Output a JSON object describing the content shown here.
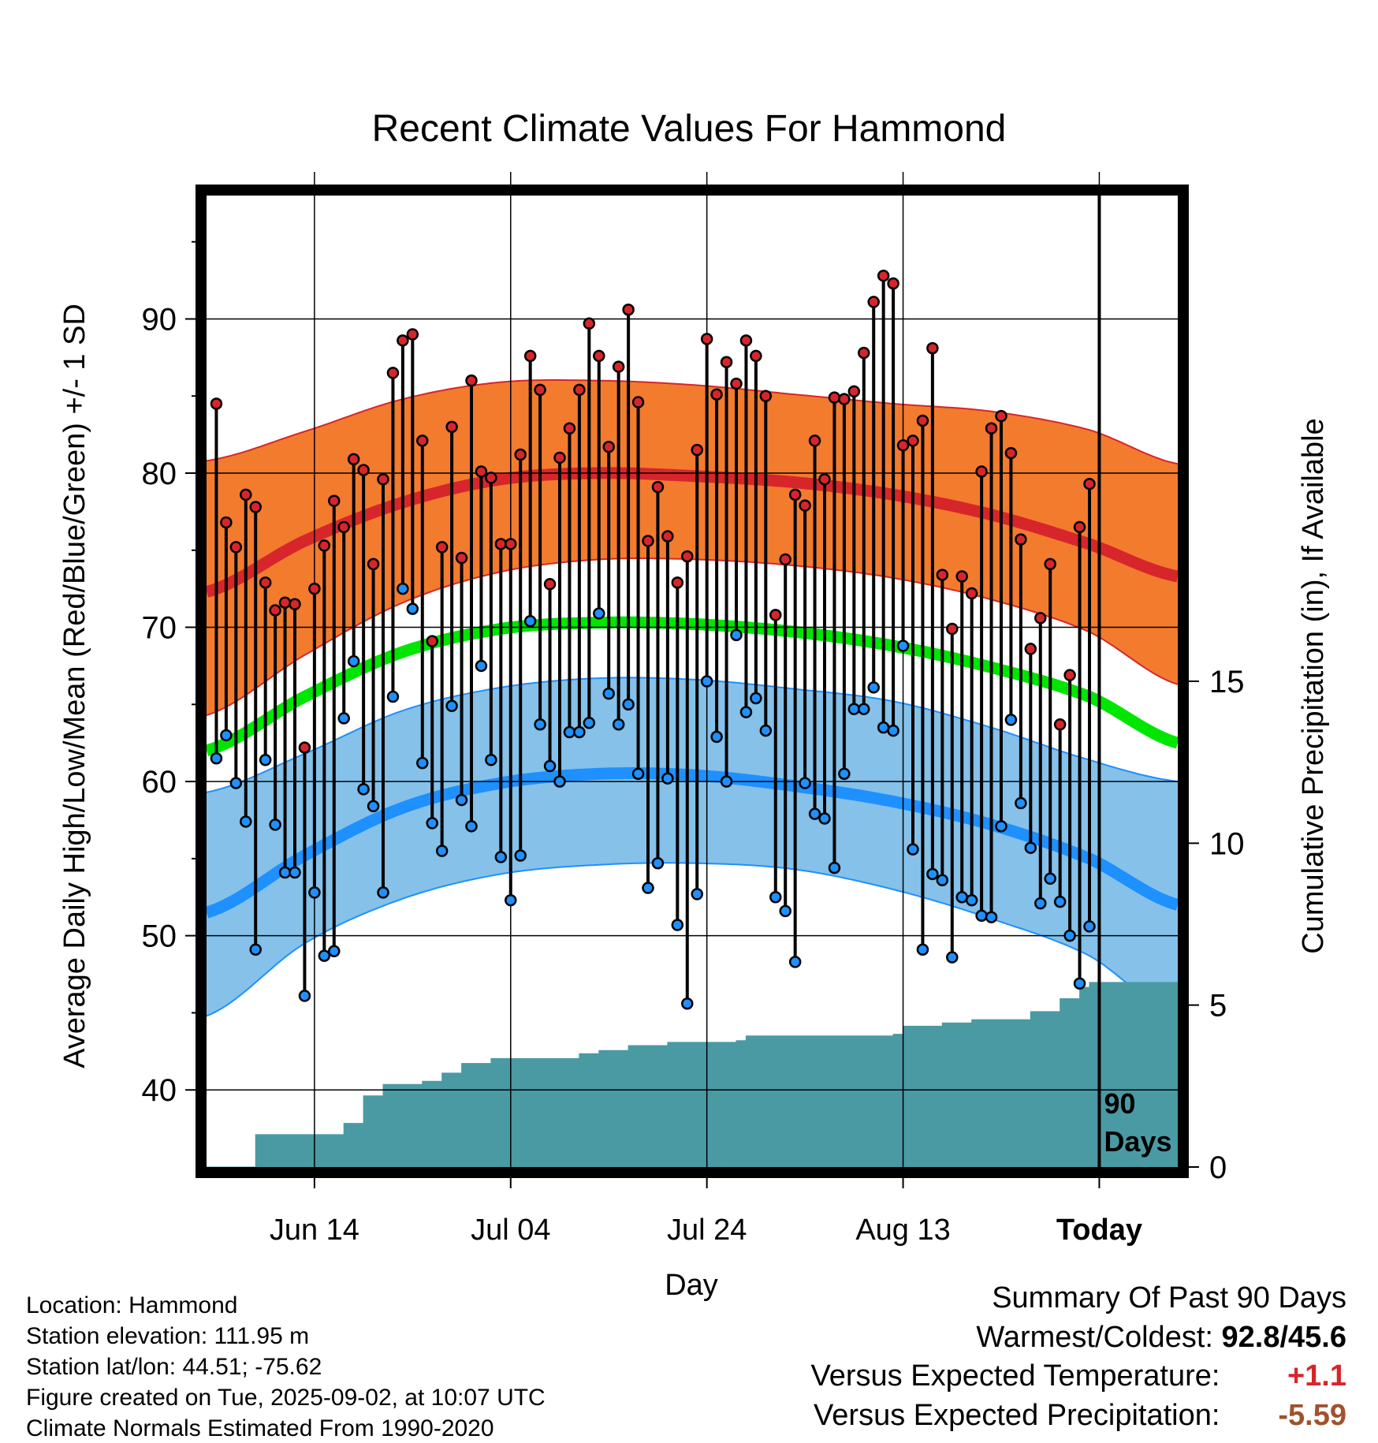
{
  "title": "Recent Climate Values For Hammond",
  "footer": {
    "location": "Location: Hammond",
    "elevation": "Station elevation: 111.95 m",
    "latlon": "Station lat/lon: 44.51; -75.62",
    "created": "Figure created on Tue, 2025-09-02, at 10:07 UTC",
    "normals": "Climate Normals Estimated From 1990-2020"
  },
  "summary": {
    "heading": "Summary Of Past 90 Days",
    "warm_cold_label": "Warmest/Coldest:",
    "warm_cold_value": "92.8/45.6",
    "temp_label": "Versus Expected Temperature:",
    "temp_value": "+1.1",
    "temp_color": "#d7262b",
    "precip_label": "Versus Expected Precipitation:",
    "precip_value": "-5.59",
    "precip_color": "#a0522d"
  },
  "chart_data": {
    "type": "line",
    "title": "Recent Climate Values For Hammond",
    "xlabel": "Day",
    "ylabel": "Average Daily High/Low/Mean (Red/Blue/Green) +/- 1 SD",
    "y2label": "Cumulative Precipitation (in), If Available",
    "x_range_days": [
      -90,
      9
    ],
    "x_ticks": [
      {
        "day": -79,
        "label": "Jun 14"
      },
      {
        "day": -59,
        "label": "Jul 04"
      },
      {
        "day": -39,
        "label": "Jul 24"
      },
      {
        "day": -19,
        "label": "Aug 13"
      },
      {
        "day": 1,
        "label": "Today"
      }
    ],
    "ylim": [
      35,
      98
    ],
    "y_ticks": [
      40,
      50,
      60,
      70,
      80,
      90
    ],
    "y2lim": [
      0,
      30
    ],
    "y2_ticks": [
      0,
      5,
      10,
      15
    ],
    "today_marker": {
      "day": 1,
      "label": [
        "90",
        "Days"
      ]
    },
    "colors": {
      "high_band": "#f37b2e",
      "high_mean": "#d7262b",
      "low_band": "#85c1e9",
      "low_mean": "#1e90ff",
      "avg_mean": "#00e600",
      "precip": "#4a9aa4",
      "high_dot": "#d7262b",
      "low_dot": "#1e90ff"
    },
    "normals": {
      "days": [
        -90,
        -80,
        -70,
        -60,
        -50,
        -40,
        -30,
        -20,
        -10,
        0,
        9
      ],
      "high_mean": [
        72.3,
        75.6,
        78.1,
        79.6,
        80.0,
        79.8,
        79.4,
        78.6,
        77.3,
        75.4,
        73.3
      ],
      "high_plus_sd": [
        80.8,
        82.7,
        84.8,
        85.9,
        86.0,
        85.7,
        85.1,
        84.5,
        84.0,
        82.8,
        80.6
      ],
      "high_minus_sd": [
        64.3,
        68.2,
        71.6,
        73.6,
        74.4,
        74.4,
        74.0,
        73.2,
        71.8,
        69.7,
        66.3
      ],
      "avg_mean": [
        62.0,
        65.5,
        68.4,
        69.9,
        70.3,
        70.2,
        69.7,
        68.8,
        67.4,
        65.5,
        62.5
      ],
      "low_mean": [
        51.5,
        55.2,
        58.3,
        59.9,
        60.5,
        60.4,
        59.7,
        58.7,
        57.2,
        55.0,
        52.0
      ],
      "low_plus_sd": [
        59.3,
        61.8,
        64.6,
        66.1,
        66.7,
        66.6,
        66.0,
        65.2,
        63.5,
        61.4,
        60.0
      ],
      "low_minus_sd": [
        44.8,
        49.5,
        52.4,
        54.0,
        54.6,
        54.7,
        54.3,
        53.0,
        51.1,
        48.7,
        44.7
      ]
    },
    "daily": {
      "start_day": -89,
      "high": [
        84.5,
        76.8,
        75.2,
        78.6,
        77.8,
        72.9,
        71.1,
        71.6,
        71.5,
        62.2,
        72.5,
        75.3,
        78.2,
        76.5,
        80.9,
        80.2,
        74.1,
        79.6,
        86.5,
        88.6,
        89.0,
        82.1,
        69.1,
        75.2,
        83.0,
        74.5,
        86.0,
        80.1,
        79.7,
        75.4,
        75.4,
        81.2,
        87.6,
        85.4,
        72.8,
        81.0,
        82.9,
        85.4,
        89.7,
        87.6,
        81.7,
        86.9,
        90.6,
        84.6,
        75.6,
        79.1,
        75.9,
        72.9,
        74.6,
        81.5,
        88.7,
        85.1,
        87.2,
        85.8,
        88.6,
        87.6,
        85.0,
        70.8,
        74.4,
        78.6,
        77.9,
        82.1,
        79.6,
        84.9,
        84.8,
        85.3,
        87.8,
        91.1,
        92.8,
        92.3,
        81.8,
        82.1,
        83.4,
        88.1,
        73.4,
        69.9,
        73.3,
        72.2,
        80.1,
        82.9,
        83.7,
        81.3,
        75.7,
        68.6,
        70.6,
        74.1,
        63.7,
        66.9,
        76.5,
        79.3
      ],
      "low": [
        61.5,
        63.0,
        59.9,
        57.4,
        49.1,
        61.4,
        57.2,
        54.1,
        54.1,
        46.1,
        52.8,
        48.7,
        49.0,
        64.1,
        67.8,
        59.5,
        58.4,
        52.8,
        65.5,
        72.5,
        71.2,
        61.2,
        57.3,
        55.5,
        64.9,
        58.8,
        57.1,
        67.5,
        61.4,
        55.1,
        52.3,
        55.2,
        70.4,
        63.7,
        61.0,
        60.0,
        63.2,
        63.2,
        63.8,
        70.9,
        65.7,
        63.7,
        65.0,
        60.5,
        53.1,
        54.7,
        60.2,
        50.7,
        45.6,
        52.7,
        66.5,
        62.9,
        60.0,
        69.5,
        64.5,
        65.4,
        63.3,
        52.5,
        51.6,
        48.3,
        59.9,
        57.9,
        57.6,
        54.4,
        60.5,
        64.7,
        64.7,
        66.1,
        63.5,
        63.3,
        68.8,
        55.6,
        49.1,
        54.0,
        53.6,
        48.6,
        52.5,
        52.3,
        51.3,
        51.2,
        57.1,
        64.0,
        58.6,
        55.7,
        52.1,
        53.7,
        52.2,
        50.0,
        46.9,
        50.6
      ]
    },
    "precip_steps": [
      {
        "day": -90,
        "value": 0.0
      },
      {
        "day": -85,
        "value": 1.0
      },
      {
        "day": -76,
        "value": 1.35
      },
      {
        "day": -74,
        "value": 2.2
      },
      {
        "day": -72,
        "value": 2.55
      },
      {
        "day": -68,
        "value": 2.65
      },
      {
        "day": -66,
        "value": 2.9
      },
      {
        "day": -64,
        "value": 3.2
      },
      {
        "day": -61,
        "value": 3.35
      },
      {
        "day": -52,
        "value": 3.5
      },
      {
        "day": -50,
        "value": 3.6
      },
      {
        "day": -47,
        "value": 3.75
      },
      {
        "day": -43,
        "value": 3.85
      },
      {
        "day": -36,
        "value": 3.9
      },
      {
        "day": -35,
        "value": 4.05
      },
      {
        "day": -20,
        "value": 4.1
      },
      {
        "day": -19,
        "value": 4.35
      },
      {
        "day": -15,
        "value": 4.45
      },
      {
        "day": -12,
        "value": 4.55
      },
      {
        "day": -6,
        "value": 4.8
      },
      {
        "day": -3,
        "value": 5.2
      },
      {
        "day": -1,
        "value": 5.55
      },
      {
        "day": 0,
        "value": 5.7
      },
      {
        "day": 9,
        "value": 5.7
      }
    ]
  }
}
